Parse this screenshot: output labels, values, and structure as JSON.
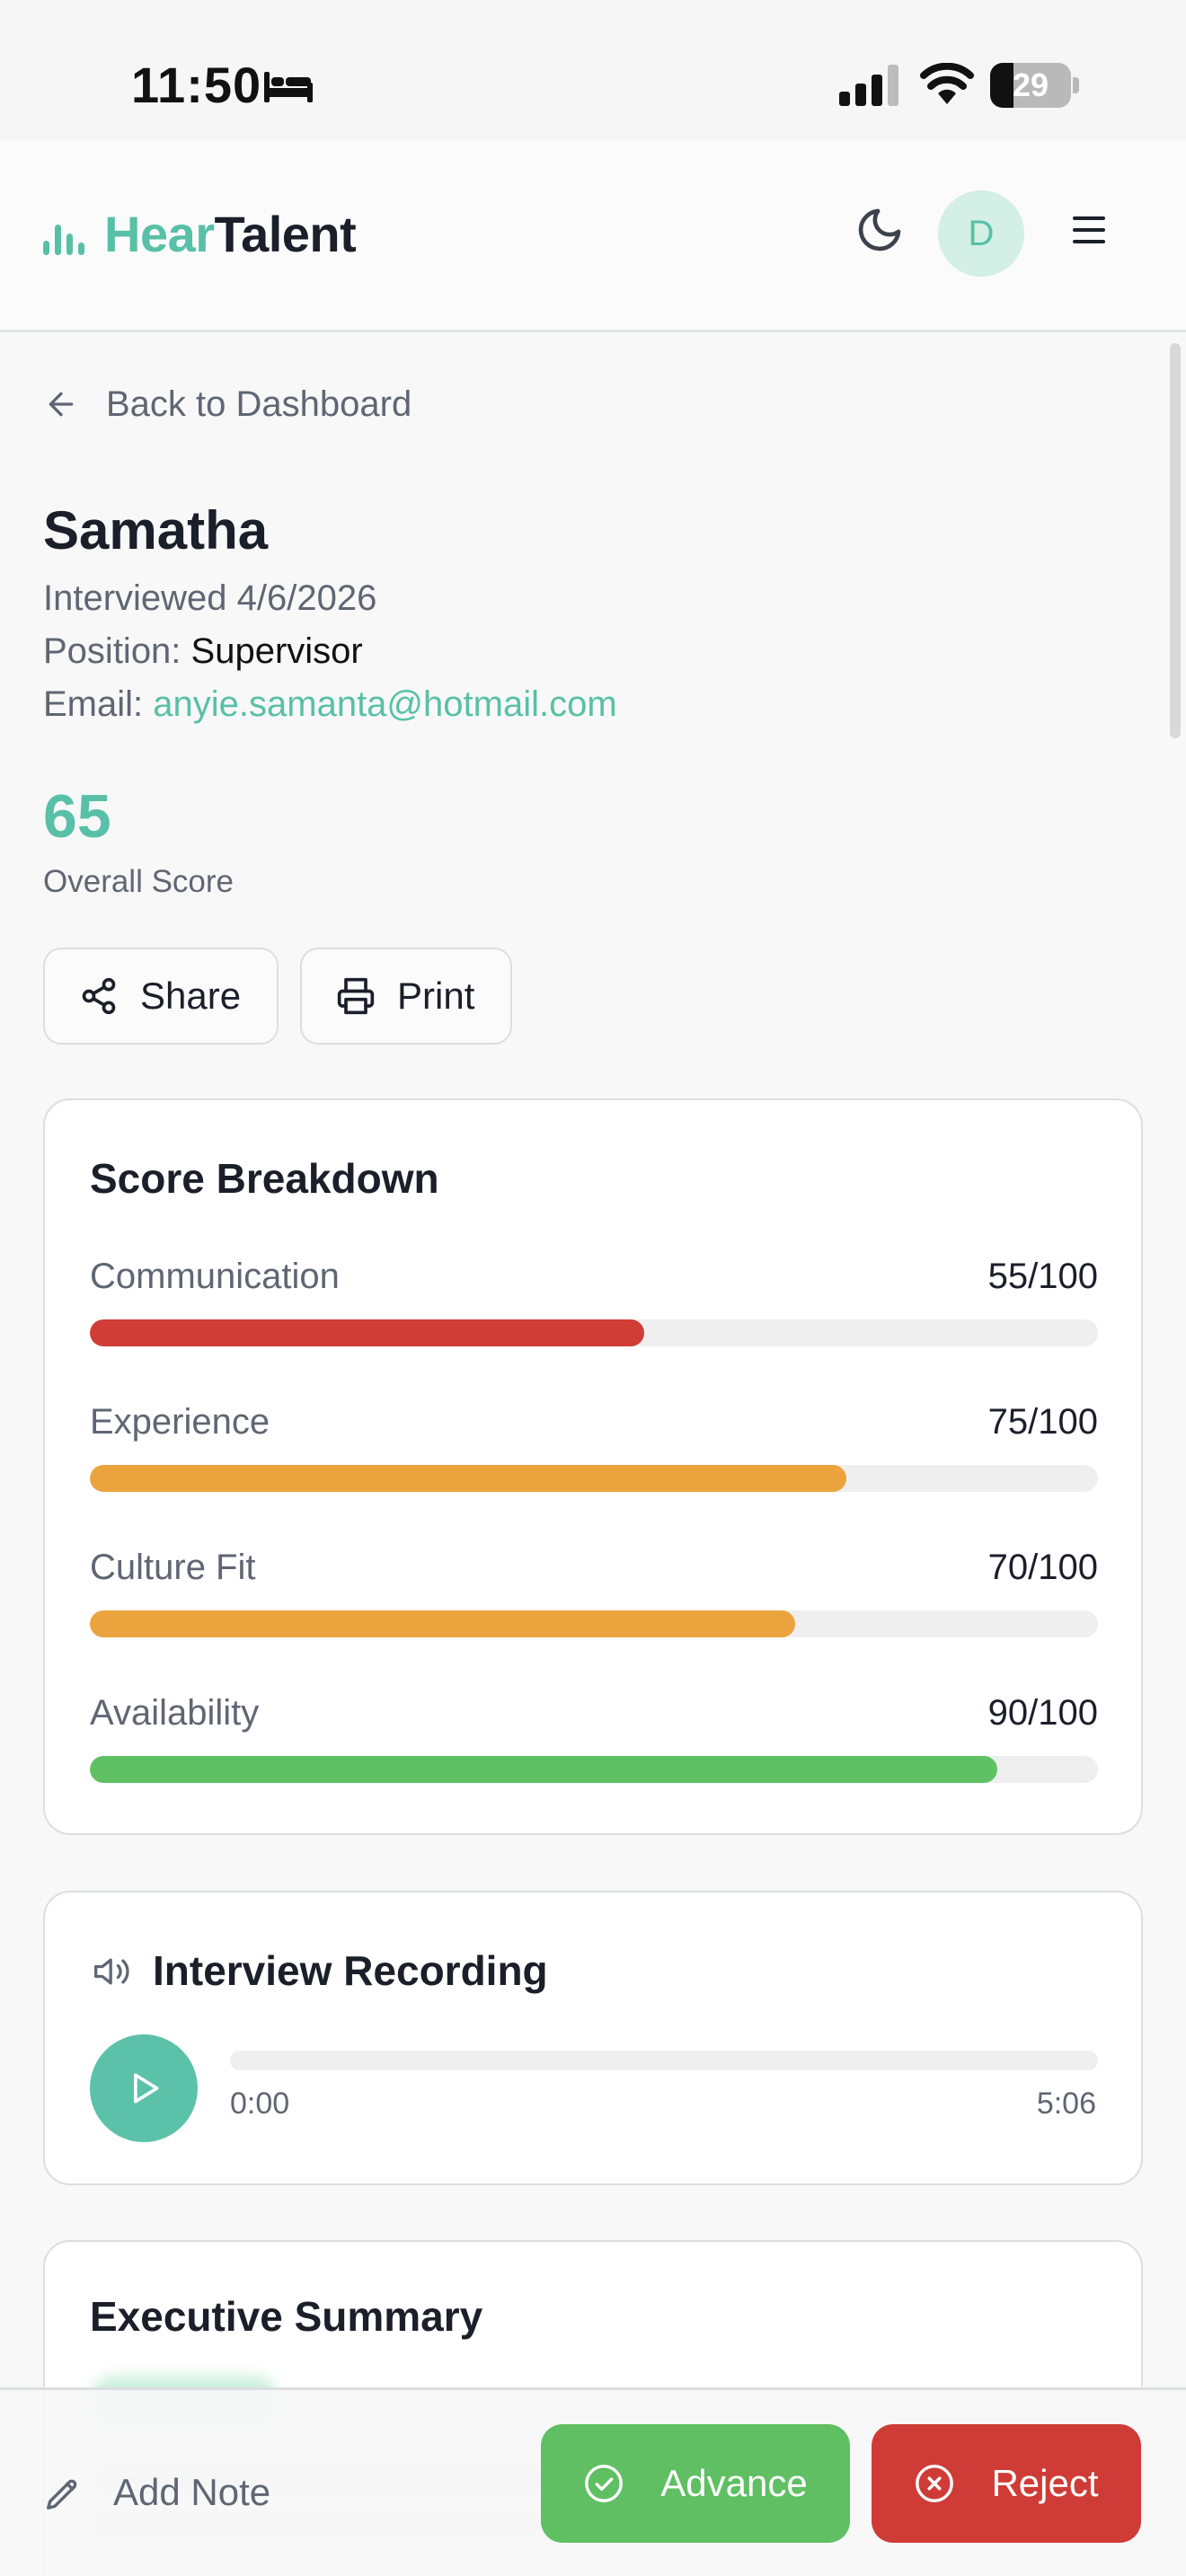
{
  "status_bar": {
    "time": "11:50",
    "battery_level": "29",
    "battery_fraction": 0.29
  },
  "header": {
    "logo_part1": "Hear",
    "logo_part2": "Talent",
    "avatar_initial": "D",
    "icons": [
      "bars-logo-icon",
      "moon-icon",
      "menu-icon"
    ]
  },
  "nav": {
    "back_label": "Back to Dashboard"
  },
  "candidate": {
    "name": "Samatha",
    "interviewed": "Interviewed 4/6/2026",
    "position_label": "Position:",
    "position_value": "Supervisor",
    "email_label": "Email:",
    "email_value": "anyie.samanta@hotmail.com"
  },
  "score": {
    "value": "65",
    "label": "Overall Score"
  },
  "actions": {
    "share_label": "Share",
    "print_label": "Print"
  },
  "breakdown": {
    "title": "Score Breakdown",
    "metrics": [
      {
        "label": "Communication",
        "value": "55/100",
        "score": 55,
        "color": "#d03c36"
      },
      {
        "label": "Experience",
        "value": "75/100",
        "score": 75,
        "color": "#eba43d"
      },
      {
        "label": "Culture Fit",
        "value": "70/100",
        "score": 70,
        "color": "#eba43d"
      },
      {
        "label": "Availability",
        "value": "90/100",
        "score": 90,
        "color": "#5fc163"
      }
    ]
  },
  "recording": {
    "title": "Interview Recording",
    "current_time": "0:00",
    "duration": "5:06",
    "progress": 0
  },
  "summary": {
    "title": "Executive Summary"
  },
  "bottom_bar": {
    "add_note_label": "Add Note",
    "advance_label": "Advance",
    "reject_label": "Reject"
  },
  "colors": {
    "accent": "#58c0a6",
    "advance": "#5fbf62",
    "reject": "#cf3b36"
  }
}
